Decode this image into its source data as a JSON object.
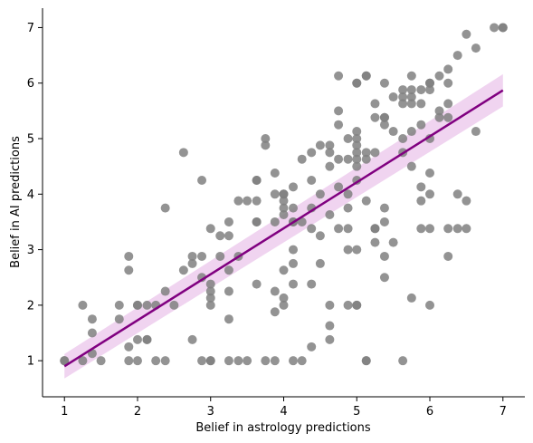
{
  "chart_data": {
    "type": "scatter",
    "title": "",
    "xlabel": "Belief in astrology predictions",
    "ylabel": "Belief in AI predictions",
    "xlim": [
      0.7,
      7.3
    ],
    "ylim": [
      0.35,
      7.35
    ],
    "xticks": [
      1,
      2,
      3,
      4,
      5,
      6,
      7
    ],
    "yticks": [
      1,
      2,
      3,
      4,
      5,
      6,
      7
    ],
    "grid": false,
    "colors": {
      "points": "#808080",
      "regression_line": "#800080",
      "confidence_band": "#dda0dd"
    },
    "regression": {
      "x": [
        1,
        7
      ],
      "y": [
        0.9,
        5.87
      ],
      "ci_lower": [
        0.68,
        5.58
      ],
      "ci_upper": [
        1.12,
        6.16
      ]
    },
    "points": [
      [
        1,
        1
      ],
      [
        1,
        1
      ],
      [
        1.25,
        1
      ],
      [
        1.25,
        2
      ],
      [
        1.38,
        1.13
      ],
      [
        1.38,
        1.5
      ],
      [
        1.38,
        1.75
      ],
      [
        1.5,
        1
      ],
      [
        1.75,
        1.75
      ],
      [
        1.75,
        2
      ],
      [
        1.88,
        1
      ],
      [
        1.88,
        1.25
      ],
      [
        1.88,
        2.63
      ],
      [
        1.88,
        2.88
      ],
      [
        2,
        1
      ],
      [
        2,
        1.38
      ],
      [
        2,
        2
      ],
      [
        2,
        2
      ],
      [
        2.13,
        1.38
      ],
      [
        2.13,
        1.38
      ],
      [
        2.13,
        2
      ],
      [
        2.25,
        1
      ],
      [
        2.25,
        2
      ],
      [
        2.38,
        1
      ],
      [
        2.38,
        2.25
      ],
      [
        2.38,
        3.75
      ],
      [
        2.5,
        2
      ],
      [
        2.63,
        2.63
      ],
      [
        2.63,
        4.75
      ],
      [
        2.75,
        1.38
      ],
      [
        2.75,
        2.75
      ],
      [
        2.75,
        2.88
      ],
      [
        2.88,
        1
      ],
      [
        2.88,
        2.5
      ],
      [
        2.88,
        2.88
      ],
      [
        2.88,
        4.25
      ],
      [
        3,
        1
      ],
      [
        3,
        1
      ],
      [
        3,
        2
      ],
      [
        3,
        2.13
      ],
      [
        3,
        2.25
      ],
      [
        3,
        2.38
      ],
      [
        3,
        3.38
      ],
      [
        3.13,
        2.88
      ],
      [
        3.13,
        3.25
      ],
      [
        3.25,
        1
      ],
      [
        3.25,
        1.75
      ],
      [
        3.25,
        2.25
      ],
      [
        3.25,
        2.63
      ],
      [
        3.25,
        3.25
      ],
      [
        3.25,
        3.5
      ],
      [
        3.38,
        1
      ],
      [
        3.38,
        2.88
      ],
      [
        3.38,
        3.88
      ],
      [
        3.5,
        1
      ],
      [
        3.5,
        3.88
      ],
      [
        3.63,
        2.38
      ],
      [
        3.63,
        3.5
      ],
      [
        3.63,
        3.5
      ],
      [
        3.63,
        3.88
      ],
      [
        3.63,
        4.25
      ],
      [
        3.63,
        4.25
      ],
      [
        3.75,
        1
      ],
      [
        3.75,
        4.88
      ],
      [
        3.75,
        5
      ],
      [
        3.88,
        1
      ],
      [
        3.88,
        1.88
      ],
      [
        3.88,
        2.25
      ],
      [
        3.88,
        3.5
      ],
      [
        3.88,
        4
      ],
      [
        3.88,
        4.38
      ],
      [
        4,
        2
      ],
      [
        4,
        2.13
      ],
      [
        4,
        2.63
      ],
      [
        4,
        3.63
      ],
      [
        4,
        3.75
      ],
      [
        4,
        3.88
      ],
      [
        4,
        4
      ],
      [
        4,
        4
      ],
      [
        4.13,
        1
      ],
      [
        4.13,
        2.38
      ],
      [
        4.13,
        2.75
      ],
      [
        4.13,
        3
      ],
      [
        4.13,
        3.5
      ],
      [
        4.13,
        3.5
      ],
      [
        4.13,
        3.75
      ],
      [
        4.13,
        4.13
      ],
      [
        4.25,
        1
      ],
      [
        4.25,
        3.5
      ],
      [
        4.25,
        4.63
      ],
      [
        4.38,
        1.25
      ],
      [
        4.38,
        2.38
      ],
      [
        4.38,
        3.38
      ],
      [
        4.38,
        3.75
      ],
      [
        4.38,
        4.25
      ],
      [
        4.38,
        4.75
      ],
      [
        4.5,
        2.75
      ],
      [
        4.5,
        3.25
      ],
      [
        4.5,
        4
      ],
      [
        4.5,
        4.88
      ],
      [
        4.63,
        1.38
      ],
      [
        4.63,
        1.63
      ],
      [
        4.63,
        2
      ],
      [
        4.63,
        3.63
      ],
      [
        4.63,
        4.5
      ],
      [
        4.63,
        4.75
      ],
      [
        4.63,
        4.88
      ],
      [
        4.75,
        3.38
      ],
      [
        4.75,
        4.13
      ],
      [
        4.75,
        4.63
      ],
      [
        4.75,
        5.25
      ],
      [
        4.75,
        5.5
      ],
      [
        4.75,
        6.13
      ],
      [
        4.88,
        2
      ],
      [
        4.88,
        3
      ],
      [
        4.88,
        3.38
      ],
      [
        4.88,
        3.75
      ],
      [
        4.88,
        4
      ],
      [
        4.88,
        4.63
      ],
      [
        4.88,
        5
      ],
      [
        5,
        2
      ],
      [
        5,
        2
      ],
      [
        5,
        3
      ],
      [
        5,
        4.25
      ],
      [
        5,
        4.5
      ],
      [
        5,
        4.63
      ],
      [
        5,
        4.75
      ],
      [
        5,
        4.88
      ],
      [
        5,
        5
      ],
      [
        5,
        5.13
      ],
      [
        5,
        6
      ],
      [
        5,
        6
      ],
      [
        5.13,
        1
      ],
      [
        5.13,
        1
      ],
      [
        5.13,
        3.88
      ],
      [
        5.13,
        4.63
      ],
      [
        5.13,
        4.75
      ],
      [
        5.13,
        6.13
      ],
      [
        5.13,
        6.13
      ],
      [
        5.25,
        3.13
      ],
      [
        5.25,
        3.38
      ],
      [
        5.25,
        3.38
      ],
      [
        5.25,
        4.75
      ],
      [
        5.25,
        5.38
      ],
      [
        5.25,
        5.63
      ],
      [
        5.38,
        2.5
      ],
      [
        5.38,
        2.88
      ],
      [
        5.38,
        3.5
      ],
      [
        5.38,
        3.75
      ],
      [
        5.38,
        5.25
      ],
      [
        5.38,
        5.38
      ],
      [
        5.38,
        5.38
      ],
      [
        5.38,
        6
      ],
      [
        5.5,
        3.13
      ],
      [
        5.5,
        5.13
      ],
      [
        5.5,
        5.75
      ],
      [
        5.63,
        1
      ],
      [
        5.63,
        4.75
      ],
      [
        5.63,
        5
      ],
      [
        5.63,
        5.63
      ],
      [
        5.63,
        5.75
      ],
      [
        5.63,
        5.88
      ],
      [
        5.75,
        2.13
      ],
      [
        5.75,
        4.5
      ],
      [
        5.75,
        5.13
      ],
      [
        5.75,
        5.63
      ],
      [
        5.75,
        5.75
      ],
      [
        5.75,
        5.88
      ],
      [
        5.75,
        6.13
      ],
      [
        5.88,
        3.38
      ],
      [
        5.88,
        3.88
      ],
      [
        5.88,
        4.13
      ],
      [
        5.88,
        5.25
      ],
      [
        5.88,
        5.63
      ],
      [
        5.88,
        5.88
      ],
      [
        6,
        2
      ],
      [
        6,
        3.38
      ],
      [
        6,
        4
      ],
      [
        6,
        4.38
      ],
      [
        6,
        5
      ],
      [
        6,
        5.88
      ],
      [
        6,
        6
      ],
      [
        6,
        6
      ],
      [
        6.13,
        5.38
      ],
      [
        6.13,
        5.5
      ],
      [
        6.13,
        6.13
      ],
      [
        6.25,
        2.88
      ],
      [
        6.25,
        3.38
      ],
      [
        6.25,
        5.38
      ],
      [
        6.25,
        5.63
      ],
      [
        6.25,
        6
      ],
      [
        6.25,
        6.25
      ],
      [
        6.38,
        3.38
      ],
      [
        6.38,
        4
      ],
      [
        6.38,
        6.5
      ],
      [
        6.5,
        3.38
      ],
      [
        6.5,
        3.88
      ],
      [
        6.5,
        6.88
      ],
      [
        6.63,
        5.13
      ],
      [
        6.63,
        6.63
      ],
      [
        6.88,
        7
      ],
      [
        7,
        7
      ],
      [
        7,
        7
      ]
    ]
  }
}
